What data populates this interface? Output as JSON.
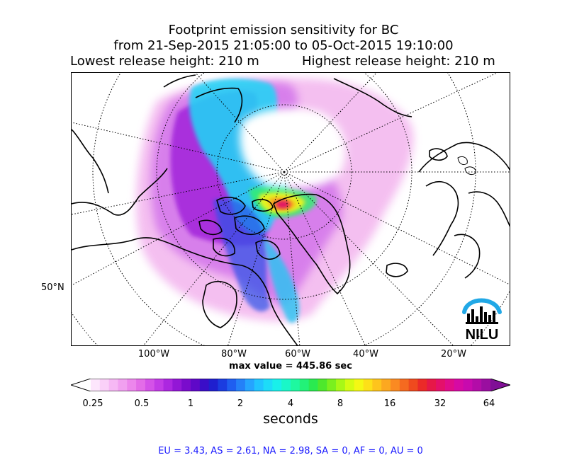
{
  "title": {
    "line1": "Footprint emission sensitivity for BC",
    "line2": "from 21-Sep-2015 21:05:00 to 05-Oct-2015 19:10:00",
    "lowest": "Lowest release height: 210 m",
    "highest": "Highest release height: 210 m"
  },
  "axes": {
    "lon_labels": [
      "100°W",
      "80°W",
      "60°W",
      "40°W",
      "20°W"
    ],
    "lat_labels": [
      "50°N"
    ]
  },
  "max_value": "max value = 445.86 sec",
  "colorbar": {
    "ticks": [
      "0.25",
      "0.5",
      "1",
      "2",
      "4",
      "8",
      "16",
      "32",
      "64"
    ],
    "label": "seconds",
    "colors": [
      "#ffffff",
      "#fde6fc",
      "#fad0f8",
      "#f6b8f4",
      "#f1a0f0",
      "#ec86ec",
      "#e36ce8",
      "#d452e8",
      "#c23be6",
      "#ac27e0",
      "#9317d6",
      "#7a0ccc",
      "#5f08c8",
      "#3a0ec8",
      "#1f1fcf",
      "#1b3ce0",
      "#1f5ef0",
      "#2480f8",
      "#25a4ff",
      "#20c4ff",
      "#1ddcf8",
      "#19f0ea",
      "#1af7c8",
      "#1ef8a0",
      "#22f278",
      "#2aea50",
      "#4ee82c",
      "#7af01e",
      "#a8f816",
      "#d4fc12",
      "#f4f814",
      "#fde018",
      "#fec41c",
      "#fca820",
      "#fa8a22",
      "#f56a20",
      "#ef4a1e",
      "#eb2a28",
      "#e61848",
      "#e4106a",
      "#e00c8a",
      "#d60aa4",
      "#c80aae",
      "#b30ca8",
      "#9a0ea0",
      "#800f96"
    ]
  },
  "logo": {
    "text": "NILU",
    "accent": "#21a8e6"
  },
  "footer": "EU = 3.43,  AS = 2.61,  NA = 2.98,  SA = 0,  AF = 0,  AU = 0"
}
